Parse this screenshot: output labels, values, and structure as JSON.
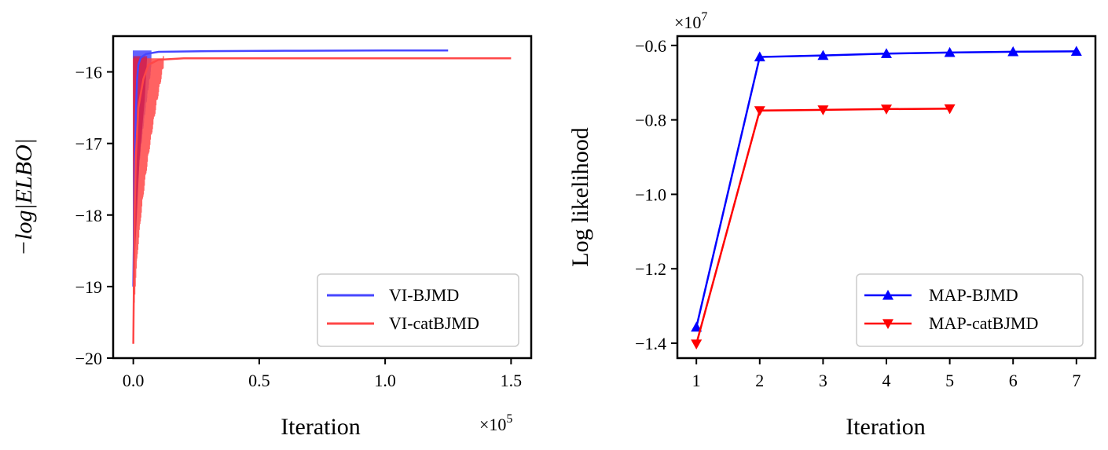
{
  "chart_data": [
    {
      "type": "line",
      "xlabel": "Iteration",
      "ylabel": "−log|ELBO|",
      "x_multiplier": "×10",
      "x_multiplier_exp": "5",
      "xlim": [
        -0.08,
        1.58
      ],
      "ylim": [
        -20,
        -15.5
      ],
      "x_ticks": [
        0.0,
        0.5,
        1.0,
        1.5
      ],
      "x_tick_labels": [
        "0.0",
        "0.5",
        "1.0",
        "1.5"
      ],
      "y_ticks": [
        -20,
        -19,
        -18,
        -17,
        -16
      ],
      "y_tick_labels": [
        "−20",
        "−19",
        "−18",
        "−17",
        "−16"
      ],
      "legend_position": "lower-right",
      "series": [
        {
          "name": "VI-BJMD",
          "color": "#4747ff",
          "x": [
            0.0,
            0.005,
            0.01,
            0.015,
            0.02,
            0.03,
            0.05,
            0.1,
            0.3,
            0.6,
            1.0,
            1.25
          ],
          "y": [
            -19.0,
            -17.5,
            -16.6,
            -16.1,
            -15.9,
            -15.8,
            -15.75,
            -15.72,
            -15.71,
            -15.705,
            -15.7,
            -15.7
          ],
          "oscillation_band": {
            "x_end": 0.07,
            "low_start": -18.8,
            "low_end": -15.9
          }
        },
        {
          "name": "VI-catBJMD",
          "color": "#ff4747",
          "x": [
            0.0,
            0.005,
            0.01,
            0.02,
            0.04,
            0.06,
            0.1,
            0.2,
            0.5,
            1.0,
            1.5
          ],
          "y": [
            -19.8,
            -18.0,
            -17.2,
            -16.5,
            -16.1,
            -15.9,
            -15.83,
            -15.81,
            -15.81,
            -15.81,
            -15.81
          ],
          "oscillation_band": {
            "x_end": 0.12,
            "low_start": -19.8,
            "low_end": -15.85
          }
        }
      ],
      "overlap_color": "#cc1a4d"
    },
    {
      "type": "line",
      "xlabel": "Iteration",
      "ylabel": "Log likelihood",
      "y_multiplier": "×10",
      "y_multiplier_exp": "7",
      "xlim": [
        0.7,
        7.3
      ],
      "ylim": [
        -1.44,
        -0.575
      ],
      "x_ticks": [
        1,
        2,
        3,
        4,
        5,
        6,
        7
      ],
      "x_tick_labels": [
        "1",
        "2",
        "3",
        "4",
        "5",
        "6",
        "7"
      ],
      "y_ticks": [
        -1.4,
        -1.2,
        -1.0,
        -0.8,
        -0.6
      ],
      "y_tick_labels": [
        "−1.4",
        "−1.2",
        "−1.0",
        "−0.8",
        "−0.6"
      ],
      "legend_position": "lower-right",
      "series": [
        {
          "name": "MAP-BJMD",
          "color": "#0000ff",
          "marker": "triangle-up",
          "x": [
            1,
            2,
            3,
            4,
            5,
            6,
            7
          ],
          "y": [
            -1.357,
            -0.631,
            -0.627,
            -0.622,
            -0.619,
            -0.617,
            -0.616
          ]
        },
        {
          "name": "MAP-catBJMD",
          "color": "#ff0000",
          "marker": "triangle-down",
          "x": [
            1,
            2,
            3,
            4,
            5
          ],
          "y": [
            -1.402,
            -0.775,
            -0.773,
            -0.771,
            -0.77
          ]
        }
      ]
    }
  ]
}
